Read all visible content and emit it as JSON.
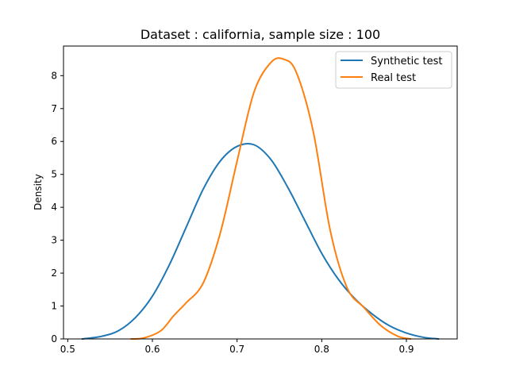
{
  "chart_data": {
    "type": "line",
    "title": "Dataset : california, sample size : 100",
    "xlabel": "",
    "ylabel": "Density",
    "xlim": [
      0.495,
      0.96
    ],
    "ylim": [
      0,
      8.9
    ],
    "xticks": [
      0.5,
      0.6,
      0.7,
      0.8,
      0.9
    ],
    "xtick_labels": [
      "0.5",
      "0.6",
      "0.7",
      "0.8",
      "0.9"
    ],
    "yticks": [
      0,
      1,
      2,
      3,
      4,
      5,
      6,
      7,
      8
    ],
    "ytick_labels": [
      "0",
      "1",
      "2",
      "3",
      "4",
      "5",
      "6",
      "7",
      "8"
    ],
    "grid": false,
    "legend_position": "top-right",
    "series": [
      {
        "name": "Synthetic test",
        "color": "#1f77b4",
        "x": [
          0.517,
          0.54,
          0.56,
          0.58,
          0.6,
          0.62,
          0.64,
          0.66,
          0.68,
          0.7,
          0.72,
          0.74,
          0.76,
          0.78,
          0.8,
          0.82,
          0.84,
          0.86,
          0.88,
          0.9,
          0.92,
          0.938
        ],
        "y": [
          0.0,
          0.08,
          0.25,
          0.65,
          1.3,
          2.25,
          3.4,
          4.55,
          5.4,
          5.85,
          5.9,
          5.45,
          4.6,
          3.6,
          2.6,
          1.8,
          1.2,
          0.75,
          0.4,
          0.18,
          0.05,
          0.0
        ]
      },
      {
        "name": "Real test",
        "color": "#ff7f0e",
        "x": [
          0.575,
          0.59,
          0.61,
          0.625,
          0.64,
          0.66,
          0.68,
          0.7,
          0.72,
          0.74,
          0.755,
          0.77,
          0.79,
          0.81,
          0.83,
          0.85,
          0.87,
          0.89,
          0.905
        ],
        "y": [
          0.0,
          0.03,
          0.25,
          0.7,
          1.1,
          1.7,
          3.2,
          5.4,
          7.5,
          8.4,
          8.5,
          8.1,
          6.3,
          3.3,
          1.55,
          0.95,
          0.4,
          0.08,
          0.0
        ]
      }
    ]
  }
}
